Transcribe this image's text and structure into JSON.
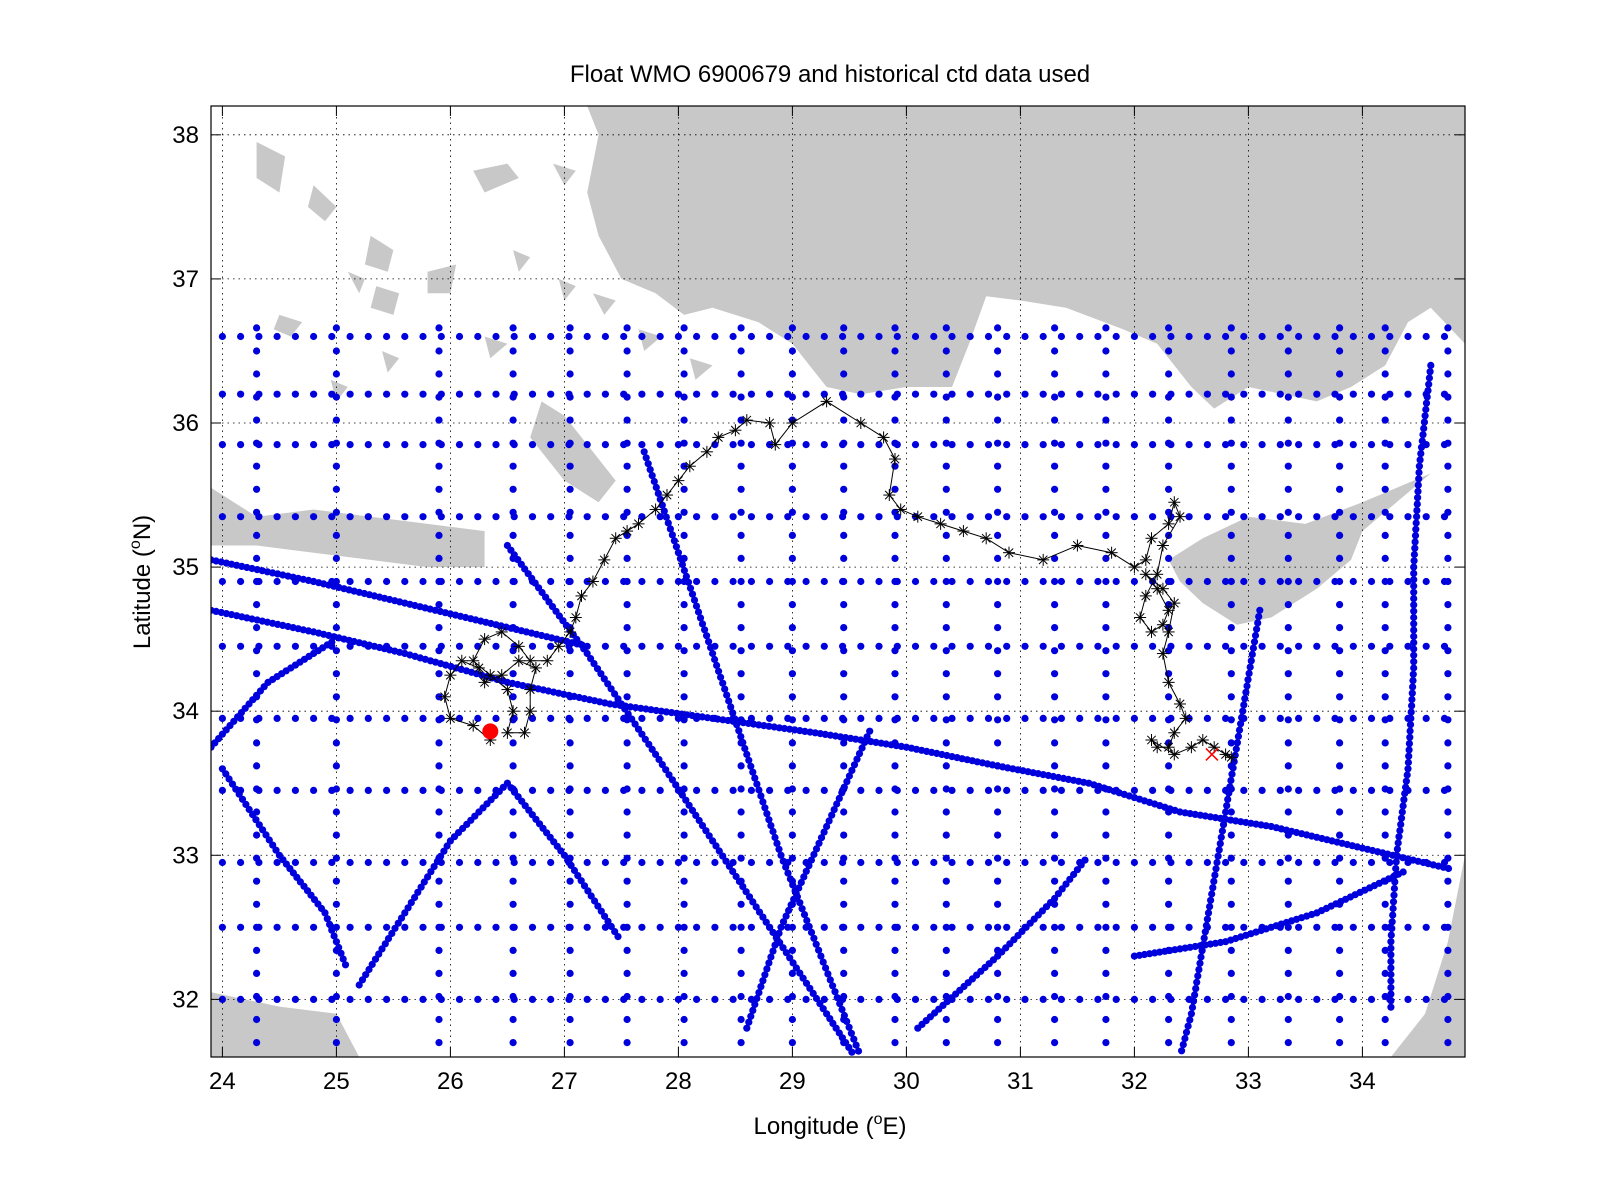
{
  "chart_data": {
    "type": "scatter",
    "title": "Float WMO 6900679 and historical ctd data used",
    "xlabel_pre": "Longitude (",
    "xlabel_sup": "o",
    "xlabel_post": "E)",
    "ylabel_pre": "Latitude (",
    "ylabel_sup": "o",
    "ylabel_post": "N)",
    "xlim": [
      23.9,
      34.9
    ],
    "ylim": [
      31.6,
      38.2
    ],
    "xticks": [
      24,
      25,
      26,
      27,
      28,
      29,
      30,
      31,
      32,
      33,
      34
    ],
    "yticks": [
      32,
      33,
      34,
      35,
      36,
      37,
      38
    ],
    "grid": true,
    "colors": {
      "land": "#c8c8c8",
      "historical_ctd": "#0000dd",
      "float_track": "#000000",
      "start_marker": "#ff0000",
      "end_marker": "#ff0000"
    },
    "land_polygons": [
      [
        [
          28.0,
          38.2
        ],
        [
          34.9,
          38.2
        ],
        [
          34.9,
          36.55
        ],
        [
          34.6,
          36.8
        ],
        [
          34.4,
          36.7
        ],
        [
          34.2,
          36.4
        ],
        [
          33.9,
          36.25
        ],
        [
          33.6,
          36.15
        ],
        [
          33.3,
          36.2
        ],
        [
          33.0,
          36.25
        ],
        [
          32.7,
          36.1
        ],
        [
          32.5,
          36.25
        ],
        [
          32.2,
          36.55
        ],
        [
          31.9,
          36.65
        ],
        [
          31.4,
          36.8
        ],
        [
          31.0,
          36.85
        ],
        [
          30.7,
          36.88
        ],
        [
          30.55,
          36.55
        ],
        [
          30.4,
          36.25
        ],
        [
          30.0,
          36.25
        ],
        [
          29.6,
          36.2
        ],
        [
          29.3,
          36.25
        ],
        [
          29.0,
          36.55
        ],
        [
          28.7,
          36.7
        ],
        [
          28.3,
          36.8
        ],
        [
          28.05,
          36.75
        ],
        [
          27.8,
          36.9
        ],
        [
          27.5,
          37.0
        ],
        [
          27.3,
          37.3
        ],
        [
          27.2,
          37.6
        ],
        [
          27.3,
          38.0
        ],
        [
          27.2,
          38.2
        ]
      ],
      [
        [
          23.9,
          35.55
        ],
        [
          24.3,
          35.35
        ],
        [
          24.8,
          35.4
        ],
        [
          25.3,
          35.35
        ],
        [
          25.8,
          35.3
        ],
        [
          26.3,
          35.25
        ],
        [
          26.3,
          35.0
        ],
        [
          25.8,
          35.0
        ],
        [
          25.3,
          35.05
        ],
        [
          24.8,
          35.1
        ],
        [
          24.3,
          35.15
        ],
        [
          23.9,
          35.15
        ]
      ],
      [
        [
          32.3,
          35.05
        ],
        [
          32.6,
          35.2
        ],
        [
          33.0,
          35.35
        ],
        [
          33.5,
          35.3
        ],
        [
          34.0,
          35.45
        ],
        [
          34.6,
          35.65
        ],
        [
          34.0,
          35.25
        ],
        [
          33.9,
          35.05
        ],
        [
          33.6,
          34.85
        ],
        [
          33.2,
          34.65
        ],
        [
          32.9,
          34.6
        ],
        [
          32.6,
          34.75
        ],
        [
          32.4,
          34.9
        ]
      ],
      [
        [
          26.7,
          35.9
        ],
        [
          27.0,
          35.6
        ],
        [
          27.3,
          35.45
        ],
        [
          27.45,
          35.6
        ],
        [
          27.25,
          35.8
        ],
        [
          27.0,
          36.05
        ],
        [
          26.8,
          36.15
        ]
      ],
      [
        [
          23.9,
          32.05
        ],
        [
          24.5,
          31.95
        ],
        [
          25.0,
          31.9
        ],
        [
          25.2,
          31.6
        ],
        [
          23.9,
          31.6
        ]
      ],
      [
        [
          34.25,
          31.6
        ],
        [
          34.9,
          31.6
        ],
        [
          34.9,
          33.0
        ],
        [
          34.75,
          32.4
        ],
        [
          34.55,
          31.9
        ]
      ]
    ],
    "island_polygons": [
      [
        [
          24.3,
          37.95
        ],
        [
          24.55,
          37.85
        ],
        [
          24.5,
          37.6
        ],
        [
          24.3,
          37.7
        ]
      ],
      [
        [
          24.8,
          37.65
        ],
        [
          25.0,
          37.5
        ],
        [
          24.9,
          37.4
        ],
        [
          24.75,
          37.5
        ]
      ],
      [
        [
          25.3,
          37.3
        ],
        [
          25.5,
          37.2
        ],
        [
          25.45,
          37.05
        ],
        [
          25.25,
          37.1
        ]
      ],
      [
        [
          25.35,
          36.95
        ],
        [
          25.55,
          36.9
        ],
        [
          25.5,
          36.75
        ],
        [
          25.3,
          36.8
        ]
      ],
      [
        [
          25.8,
          37.05
        ],
        [
          26.05,
          37.1
        ],
        [
          26.0,
          36.9
        ],
        [
          25.8,
          36.9
        ]
      ],
      [
        [
          26.2,
          37.75
        ],
        [
          26.5,
          37.8
        ],
        [
          26.6,
          37.7
        ],
        [
          26.3,
          37.6
        ]
      ],
      [
        [
          26.9,
          37.8
        ],
        [
          27.1,
          37.75
        ],
        [
          27.0,
          37.65
        ]
      ],
      [
        [
          26.55,
          37.2
        ],
        [
          26.7,
          37.15
        ],
        [
          26.6,
          37.05
        ]
      ],
      [
        [
          26.95,
          37.0
        ],
        [
          27.1,
          36.95
        ],
        [
          27.0,
          36.85
        ]
      ],
      [
        [
          27.25,
          36.9
        ],
        [
          27.45,
          36.85
        ],
        [
          27.35,
          36.75
        ]
      ],
      [
        [
          24.5,
          36.75
        ],
        [
          24.7,
          36.7
        ],
        [
          24.6,
          36.6
        ],
        [
          24.45,
          36.65
        ]
      ],
      [
        [
          26.3,
          36.6
        ],
        [
          26.5,
          36.55
        ],
        [
          26.35,
          36.45
        ]
      ],
      [
        [
          27.65,
          36.65
        ],
        [
          27.85,
          36.6
        ],
        [
          27.7,
          36.5
        ]
      ],
      [
        [
          28.1,
          36.45
        ],
        [
          28.3,
          36.4
        ],
        [
          28.15,
          36.3
        ]
      ],
      [
        [
          25.4,
          36.5
        ],
        [
          25.55,
          36.45
        ],
        [
          25.45,
          36.35
        ]
      ],
      [
        [
          25.1,
          37.05
        ],
        [
          25.25,
          37.0
        ],
        [
          25.2,
          36.9
        ]
      ],
      [
        [
          24.95,
          36.3
        ],
        [
          25.1,
          36.25
        ],
        [
          25.0,
          36.15
        ]
      ]
    ],
    "float_track": [
      [
        26.35,
        33.8
      ],
      [
        26.2,
        33.9
      ],
      [
        26.0,
        33.95
      ],
      [
        25.95,
        34.1
      ],
      [
        26.0,
        34.25
      ],
      [
        26.1,
        34.35
      ],
      [
        26.25,
        34.3
      ],
      [
        26.3,
        34.2
      ],
      [
        26.45,
        34.25
      ],
      [
        26.6,
        34.35
      ],
      [
        26.75,
        34.3
      ],
      [
        26.7,
        34.15
      ],
      [
        26.7,
        34.0
      ],
      [
        26.65,
        33.85
      ],
      [
        26.5,
        33.85
      ],
      [
        26.55,
        34.0
      ],
      [
        26.5,
        34.15
      ],
      [
        26.35,
        34.25
      ],
      [
        26.2,
        34.35
      ],
      [
        26.3,
        34.5
      ],
      [
        26.45,
        34.55
      ],
      [
        26.6,
        34.45
      ],
      [
        26.7,
        34.35
      ],
      [
        26.85,
        34.35
      ],
      [
        26.95,
        34.45
      ],
      [
        27.05,
        34.55
      ],
      [
        27.1,
        34.65
      ],
      [
        27.15,
        34.8
      ],
      [
        27.25,
        34.9
      ],
      [
        27.35,
        35.05
      ],
      [
        27.45,
        35.2
      ],
      [
        27.55,
        35.25
      ],
      [
        27.65,
        35.3
      ],
      [
        27.8,
        35.4
      ],
      [
        27.9,
        35.5
      ],
      [
        28.0,
        35.6
      ],
      [
        28.1,
        35.7
      ],
      [
        28.25,
        35.8
      ],
      [
        28.35,
        35.9
      ],
      [
        28.5,
        35.95
      ],
      [
        28.6,
        36.02
      ],
      [
        28.8,
        36.0
      ],
      [
        28.85,
        35.85
      ],
      [
        29.0,
        36.0
      ],
      [
        29.3,
        36.15
      ],
      [
        29.6,
        36.0
      ],
      [
        29.8,
        35.9
      ],
      [
        29.9,
        35.75
      ],
      [
        29.85,
        35.5
      ],
      [
        29.95,
        35.4
      ],
      [
        30.1,
        35.35
      ],
      [
        30.3,
        35.3
      ],
      [
        30.5,
        35.25
      ],
      [
        30.7,
        35.2
      ],
      [
        30.9,
        35.1
      ],
      [
        31.2,
        35.05
      ],
      [
        31.5,
        35.15
      ],
      [
        31.8,
        35.1
      ],
      [
        32.0,
        35.0
      ],
      [
        32.1,
        35.05
      ],
      [
        32.15,
        35.2
      ],
      [
        32.3,
        35.3
      ],
      [
        32.35,
        35.45
      ],
      [
        32.4,
        35.35
      ],
      [
        32.25,
        35.15
      ],
      [
        32.2,
        34.95
      ],
      [
        32.1,
        34.8
      ],
      [
        32.05,
        34.65
      ],
      [
        32.15,
        34.55
      ],
      [
        32.25,
        34.6
      ],
      [
        32.3,
        34.7
      ],
      [
        32.2,
        34.85
      ],
      [
        32.1,
        34.95
      ],
      [
        32.25,
        34.85
      ],
      [
        32.35,
        34.75
      ],
      [
        32.3,
        34.55
      ],
      [
        32.25,
        34.4
      ],
      [
        32.3,
        34.2
      ],
      [
        32.4,
        34.05
      ],
      [
        32.45,
        33.95
      ],
      [
        32.35,
        33.85
      ],
      [
        32.3,
        33.75
      ],
      [
        32.2,
        33.75
      ],
      [
        32.15,
        33.8
      ],
      [
        32.35,
        33.7
      ],
      [
        32.5,
        33.75
      ],
      [
        32.6,
        33.8
      ],
      [
        32.7,
        33.75
      ],
      [
        32.8,
        33.7
      ],
      [
        32.85,
        33.68
      ]
    ],
    "start_point": [
      26.35,
      33.86
    ],
    "end_point": [
      32.68,
      33.7
    ],
    "ctd_lines": [
      [
        [
          26.5,
          35.15
        ],
        [
          27.2,
          34.4
        ],
        [
          27.8,
          33.7
        ],
        [
          28.3,
          33.1
        ],
        [
          28.8,
          32.5
        ],
        [
          29.3,
          31.9
        ],
        [
          29.55,
          31.6
        ]
      ],
      [
        [
          27.7,
          35.8
        ],
        [
          28.0,
          35.1
        ],
        [
          28.3,
          34.4
        ],
        [
          28.6,
          33.7
        ],
        [
          28.9,
          33.0
        ],
        [
          29.25,
          32.3
        ],
        [
          29.6,
          31.6
        ]
      ],
      [
        [
          33.1,
          34.7
        ],
        [
          32.95,
          34.0
        ],
        [
          32.8,
          33.3
        ],
        [
          32.65,
          32.6
        ],
        [
          32.5,
          31.9
        ],
        [
          32.4,
          31.6
        ]
      ],
      [
        [
          23.9,
          34.7
        ],
        [
          24.8,
          34.55
        ],
        [
          25.6,
          34.4
        ],
        [
          26.5,
          34.2
        ],
        [
          27.4,
          34.05
        ],
        [
          28.3,
          33.95
        ],
        [
          29.2,
          33.85
        ],
        [
          30.0,
          33.75
        ],
        [
          30.8,
          33.62
        ],
        [
          31.6,
          33.5
        ],
        [
          32.4,
          33.3
        ],
        [
          33.2,
          33.2
        ],
        [
          34.0,
          33.05
        ],
        [
          34.8,
          32.9
        ]
      ],
      [
        [
          23.9,
          35.05
        ],
        [
          24.8,
          34.9
        ],
        [
          25.6,
          34.75
        ],
        [
          26.4,
          34.6
        ],
        [
          27.2,
          34.45
        ]
      ],
      [
        [
          23.9,
          33.75
        ],
        [
          24.4,
          34.2
        ],
        [
          25.0,
          34.5
        ]
      ],
      [
        [
          24.0,
          33.6
        ],
        [
          24.5,
          33.0
        ],
        [
          24.9,
          32.6
        ],
        [
          25.1,
          32.2
        ]
      ],
      [
        [
          25.2,
          32.1
        ],
        [
          25.6,
          32.6
        ],
        [
          26.0,
          33.1
        ],
        [
          26.5,
          33.5
        ],
        [
          27.0,
          33.0
        ],
        [
          27.5,
          32.4
        ]
      ],
      [
        [
          32.0,
          32.3
        ],
        [
          32.8,
          32.4
        ],
        [
          33.6,
          32.6
        ],
        [
          34.4,
          32.9
        ]
      ],
      [
        [
          34.6,
          36.4
        ],
        [
          34.5,
          35.7
        ],
        [
          34.45,
          35.0
        ],
        [
          34.45,
          34.3
        ],
        [
          34.4,
          33.6
        ],
        [
          34.3,
          33.0
        ],
        [
          34.25,
          32.4
        ],
        [
          34.25,
          31.9
        ]
      ],
      [
        [
          30.1,
          31.8
        ],
        [
          30.8,
          32.3
        ],
        [
          31.3,
          32.7
        ],
        [
          31.6,
          33.0
        ]
      ],
      [
        [
          28.6,
          31.8
        ],
        [
          28.9,
          32.5
        ],
        [
          29.3,
          33.2
        ],
        [
          29.7,
          33.9
        ]
      ]
    ],
    "ctd_grid_lons": [
      24.3,
      25.0,
      25.9,
      26.55,
      27.05,
      27.55,
      28.05,
      28.55,
      29.0,
      29.45,
      29.9,
      30.35,
      30.8,
      31.3,
      31.75,
      32.3,
      32.85,
      33.35,
      33.8,
      34.2,
      34.75
    ],
    "ctd_grid_lats": [
      32.0,
      32.5,
      32.95,
      33.45,
      33.95,
      34.45,
      34.9,
      35.35,
      35.85,
      36.2,
      36.6
    ]
  }
}
